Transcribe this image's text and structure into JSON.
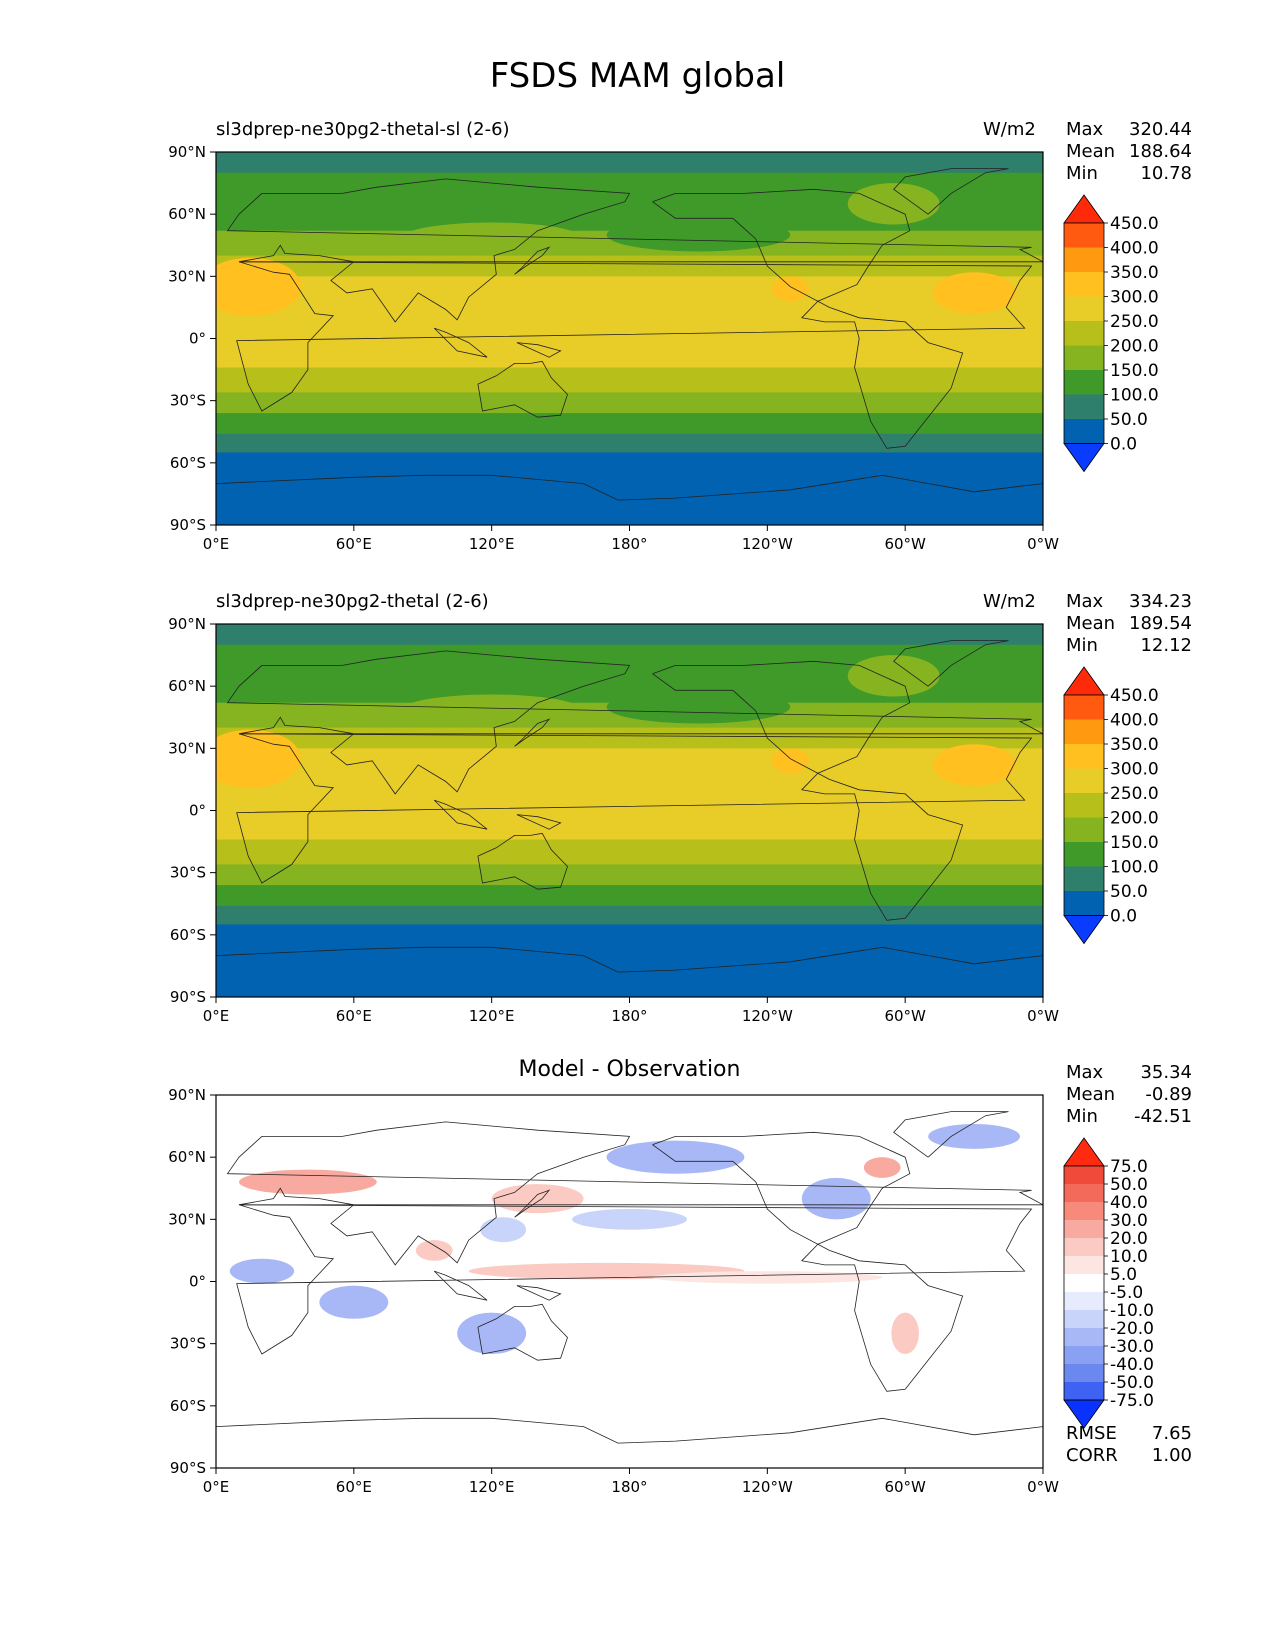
{
  "title": "FSDS MAM global",
  "chart_data": [
    {
      "type": "heatmap",
      "title_left": "sl3dprep-ne30pg2-thetal-sl (2-6)",
      "units": "W/m2",
      "stats": [
        {
          "label": "Max",
          "value": "320.44"
        },
        {
          "label": "Mean",
          "value": "188.64"
        },
        {
          "label": "Min",
          "value": "10.78"
        }
      ],
      "xticks": [
        "0°E",
        "60°E",
        "120°E",
        "180°",
        "120°W",
        "60°W",
        "0°W"
      ],
      "yticks": [
        "90°N",
        "60°N",
        "30°N",
        "0°",
        "30°S",
        "60°S",
        "90°S"
      ],
      "xlim": [
        0,
        360
      ],
      "ylim": [
        -90,
        90
      ],
      "levels": [
        "450.0",
        "400.0",
        "350.0",
        "300.0",
        "250.0",
        "200.0",
        "150.0",
        "100.0",
        "50.0",
        "0.0"
      ],
      "colors": [
        "#ff2a0a",
        "#ff5a10",
        "#ff9a10",
        "#ffc020",
        "#e8cc28",
        "#b7bf1a",
        "#86b420",
        "#3f9a2a",
        "#2e7f6c",
        "#0062b0",
        "#0a3cff"
      ]
    },
    {
      "type": "heatmap",
      "title_left": "sl3dprep-ne30pg2-thetal (2-6)",
      "units": "W/m2",
      "stats": [
        {
          "label": "Max",
          "value": "334.23"
        },
        {
          "label": "Mean",
          "value": "189.54"
        },
        {
          "label": "Min",
          "value": "12.12"
        }
      ],
      "xticks": [
        "0°E",
        "60°E",
        "120°E",
        "180°",
        "120°W",
        "60°W",
        "0°W"
      ],
      "yticks": [
        "90°N",
        "60°N",
        "30°N",
        "0°",
        "30°S",
        "60°S",
        "90°S"
      ],
      "xlim": [
        0,
        360
      ],
      "ylim": [
        -90,
        90
      ],
      "levels": [
        "450.0",
        "400.0",
        "350.0",
        "300.0",
        "250.0",
        "200.0",
        "150.0",
        "100.0",
        "50.0",
        "0.0"
      ],
      "colors": [
        "#ff2a0a",
        "#ff5a10",
        "#ff9a10",
        "#ffc020",
        "#e8cc28",
        "#b7bf1a",
        "#86b420",
        "#3f9a2a",
        "#2e7f6c",
        "#0062b0",
        "#0a3cff"
      ]
    },
    {
      "type": "heatmap",
      "title_center": "Model - Observation",
      "stats": [
        {
          "label": "Max",
          "value": "35.34"
        },
        {
          "label": "Mean",
          "value": "-0.89"
        },
        {
          "label": "Min",
          "value": "-42.51"
        }
      ],
      "metrics": [
        {
          "label": "RMSE",
          "value": "7.65"
        },
        {
          "label": "CORR",
          "value": "1.00"
        }
      ],
      "xticks": [
        "0°E",
        "60°E",
        "120°E",
        "180°",
        "120°W",
        "60°W",
        "0°W"
      ],
      "yticks": [
        "90°N",
        "60°N",
        "30°N",
        "0°",
        "30°S",
        "60°S",
        "90°S"
      ],
      "xlim": [
        0,
        360
      ],
      "ylim": [
        -90,
        90
      ],
      "levels": [
        "75.0",
        "50.0",
        "40.0",
        "30.0",
        "20.0",
        "10.0",
        "5.0",
        "-5.0",
        "-10.0",
        "-20.0",
        "-30.0",
        "-40.0",
        "-50.0",
        "-75.0"
      ],
      "colors": [
        "#ff2a10",
        "#f04a3a",
        "#f46a5a",
        "#f78a7a",
        "#f9aaa0",
        "#fbcac2",
        "#fde6e2",
        "#ffffff",
        "#e6ecfd",
        "#c8d4fa",
        "#a8b8f6",
        "#8aa0f2",
        "#6a88ee",
        "#3e62f2",
        "#0a32ff"
      ]
    }
  ]
}
